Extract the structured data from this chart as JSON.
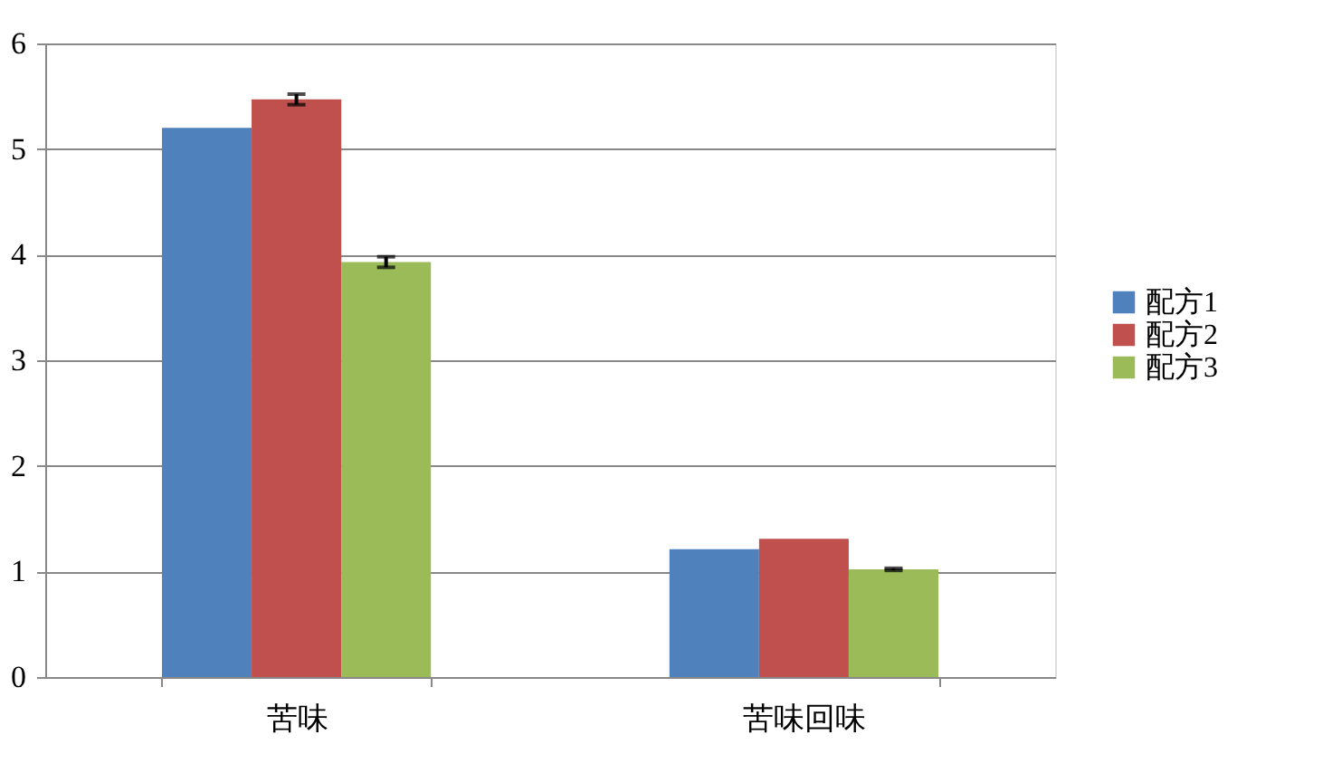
{
  "chart_data": {
    "type": "bar",
    "categories": [
      "苦味",
      "苦味回味"
    ],
    "series": [
      {
        "name": "配方1",
        "color": "#4f81bd",
        "values": [
          5.2,
          1.21
        ]
      },
      {
        "name": "配方2",
        "color": "#c0504d",
        "values": [
          5.47,
          1.31
        ],
        "errors": [
          0.05,
          null
        ]
      },
      {
        "name": "配方3",
        "color": "#9bbb59",
        "values": [
          3.93,
          1.02
        ],
        "errors": [
          0.05,
          0.01
        ]
      }
    ],
    "ylim": [
      0,
      6
    ],
    "yticks": [
      0,
      1,
      2,
      3,
      4,
      5,
      6
    ],
    "grid": "y",
    "legend": "right"
  }
}
